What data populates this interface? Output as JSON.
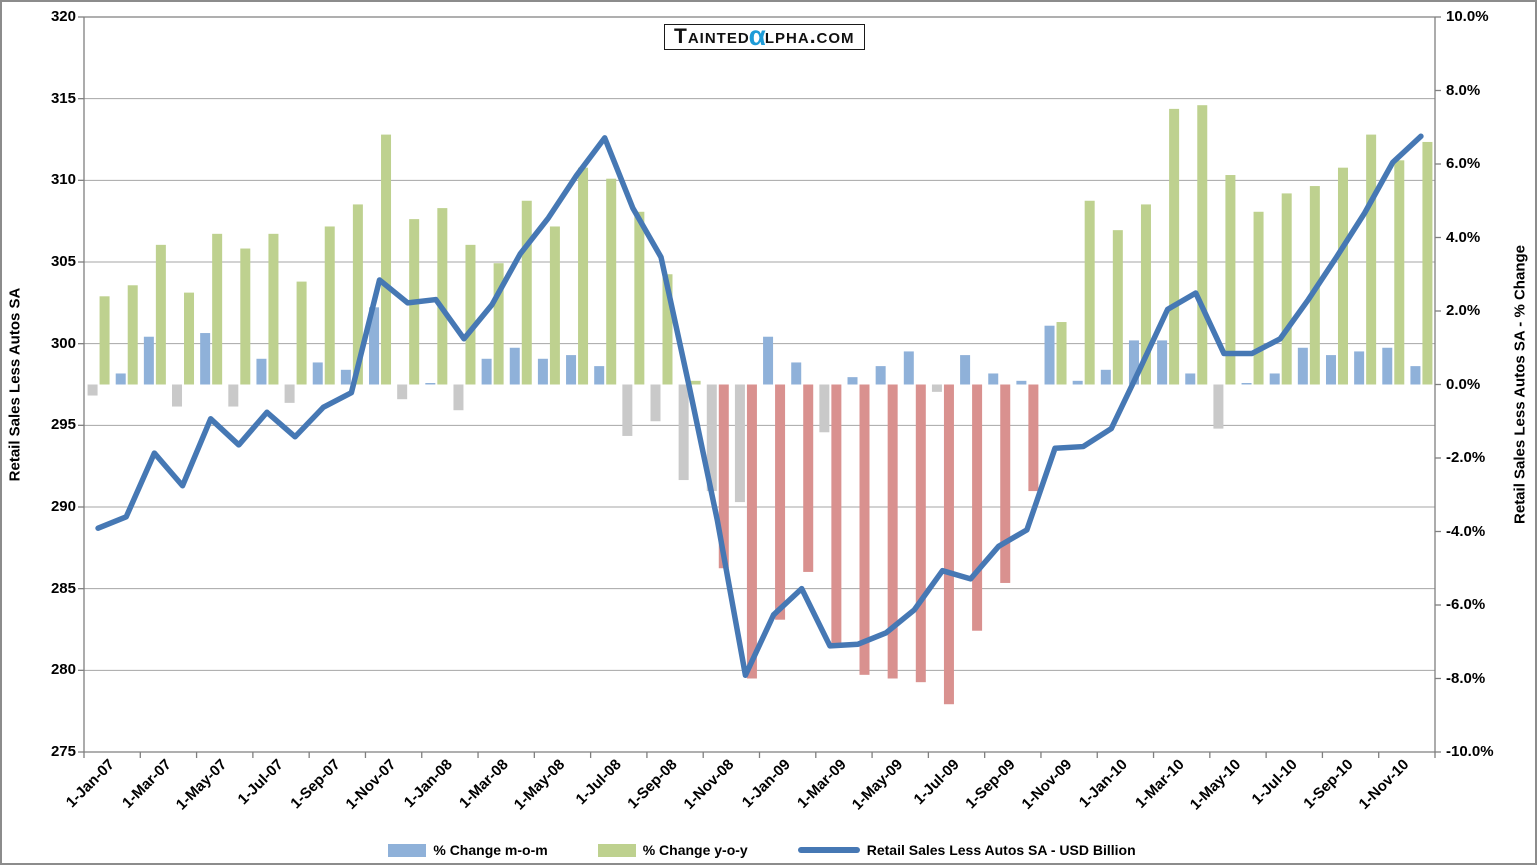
{
  "logo": {
    "part1": "Tainted",
    "alpha": "α",
    "part2": "lpha.com",
    "alpha_color": "#1E9CD7"
  },
  "legend": {
    "mom_label": "% Change m-o-m",
    "yoy_label": "% Change y-o-y",
    "line_label": "Retail Sales Less Autos SA - USD Billion"
  },
  "axes": {
    "left_title": "Retail Sales Less Autos SA",
    "right_title": "Retail Sales Less Autos SA - % Change",
    "left_tick_labels": [
      "320",
      "315",
      "310",
      "305",
      "300",
      "295",
      "290",
      "285",
      "280",
      "275"
    ],
    "right_tick_labels": [
      "10.0%",
      "8.0%",
      "6.0%",
      "4.0%",
      "2.0%",
      "0.0%",
      "-2.0%",
      "-4.0%",
      "-6.0%",
      "-8.0%",
      "-10.0%"
    ],
    "x_tick_labels": [
      "1-Jan-07",
      "1-Mar-07",
      "1-May-07",
      "1-Jul-07",
      "1-Sep-07",
      "1-Nov-07",
      "1-Jan-08",
      "1-Mar-08",
      "1-May-08",
      "1-Jul-08",
      "1-Sep-08",
      "1-Nov-08",
      "1-Jan-09",
      "1-Mar-09",
      "1-May-09",
      "1-Jul-09",
      "1-Sep-09",
      "1-Nov-09",
      "1-Jan-10",
      "1-Mar-10",
      "1-May-10",
      "1-Jul-10",
      "1-Sep-10",
      "1-Nov-10"
    ]
  },
  "colors": {
    "mom_positive": "#8FB1D9",
    "mom_negative": "#C9C9C9",
    "yoy_positive": "#BED18F",
    "yoy_negative": "#D9918F",
    "line": "#4678B4",
    "gridline": "#A6A6A6",
    "axis_line": "#7F7F7F"
  },
  "chart_data": {
    "type": "combo (bar + line)",
    "x": [
      "Jan-07",
      "Feb-07",
      "Mar-07",
      "Apr-07",
      "May-07",
      "Jun-07",
      "Jul-07",
      "Aug-07",
      "Sep-07",
      "Oct-07",
      "Nov-07",
      "Dec-07",
      "Jan-08",
      "Feb-08",
      "Mar-08",
      "Apr-08",
      "May-08",
      "Jun-08",
      "Jul-08",
      "Aug-08",
      "Sep-08",
      "Oct-08",
      "Nov-08",
      "Dec-08",
      "Jan-09",
      "Feb-09",
      "Mar-09",
      "Apr-09",
      "May-09",
      "Jun-09",
      "Jul-09",
      "Aug-09",
      "Sep-09",
      "Oct-09",
      "Nov-09",
      "Dec-09",
      "Jan-10",
      "Feb-10",
      "Mar-10",
      "Apr-10",
      "May-10",
      "Jun-10",
      "Jul-10",
      "Aug-10",
      "Sep-10",
      "Oct-10",
      "Nov-10",
      "Dec-10"
    ],
    "series": [
      {
        "name": "% Change m-o-m",
        "type": "bar",
        "axis": "right",
        "values": [
          -0.3,
          0.3,
          1.3,
          -0.6,
          1.4,
          -0.6,
          0.7,
          -0.5,
          0.6,
          0.4,
          2.1,
          -0.4,
          0.0,
          -0.7,
          0.7,
          1.0,
          0.7,
          0.8,
          0.5,
          -1.4,
          -1.0,
          -2.6,
          -2.9,
          -3.2,
          1.3,
          0.6,
          -1.3,
          0.2,
          0.5,
          0.9,
          -0.2,
          0.8,
          0.3,
          0.1,
          1.6,
          0.1,
          0.4,
          1.2,
          1.2,
          0.3,
          -1.2,
          0.0,
          0.3,
          1.0,
          0.8,
          0.9,
          1.0,
          0.5
        ]
      },
      {
        "name": "% Change y-o-y",
        "type": "bar",
        "axis": "right",
        "values": [
          2.4,
          2.7,
          3.8,
          2.5,
          4.1,
          3.7,
          4.1,
          2.8,
          4.3,
          4.9,
          6.8,
          4.5,
          4.8,
          3.8,
          3.3,
          5.0,
          4.3,
          5.9,
          5.6,
          4.7,
          3.0,
          0.1,
          -5.0,
          -8.0,
          -6.4,
          -5.1,
          -7.1,
          -7.9,
          -8.0,
          -8.1,
          -8.7,
          -6.7,
          -5.4,
          -2.9,
          1.7,
          5.0,
          4.2,
          4.9,
          7.5,
          7.6,
          5.7,
          4.7,
          5.2,
          5.4,
          5.9,
          6.8,
          6.1,
          6.6
        ]
      },
      {
        "name": "Retail Sales Less Autos SA - USD Billion",
        "type": "line",
        "axis": "left",
        "values": [
          288.7,
          289.4,
          293.3,
          291.3,
          295.4,
          293.8,
          295.8,
          294.3,
          296.1,
          297.0,
          303.9,
          302.5,
          302.7,
          300.3,
          302.4,
          305.5,
          307.7,
          310.3,
          312.6,
          308.3,
          305.3,
          297.4,
          289.2,
          279.7,
          283.4,
          285.0,
          281.5,
          281.6,
          282.3,
          283.7,
          286.1,
          285.6,
          287.6,
          288.6,
          293.6,
          293.7,
          294.8,
          298.4,
          302.1,
          303.1,
          299.4,
          299.4,
          300.3,
          302.7,
          305.3,
          308.0,
          311.1,
          312.7
        ]
      }
    ],
    "left_axis": {
      "title": "Retail Sales Less Autos SA",
      "min": 275,
      "max": 320,
      "step": 5,
      "gridlines": true
    },
    "right_axis": {
      "title": "Retail Sales Less Autos SA - % Change",
      "min": -10,
      "max": 10,
      "step": 2
    },
    "legend_position": "bottom"
  }
}
